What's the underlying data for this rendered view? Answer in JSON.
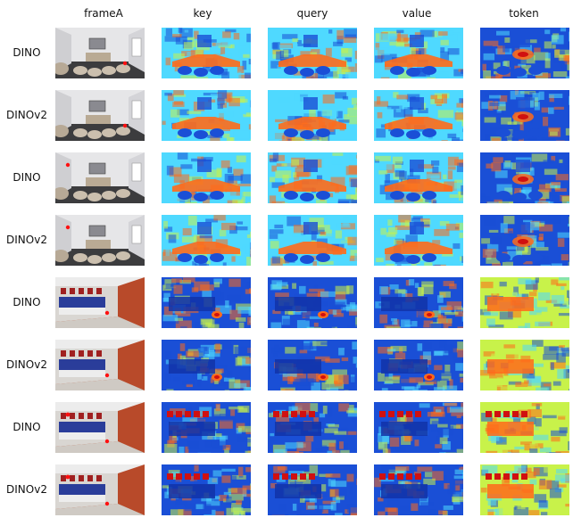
{
  "columns": [
    "frameA",
    "key",
    "query",
    "value",
    "token"
  ],
  "rows": [
    {
      "label": "DINO",
      "scene": "room1"
    },
    {
      "label": "DINOv2",
      "scene": "room1"
    },
    {
      "label": "DINO",
      "scene": "room1"
    },
    {
      "label": "DINOv2",
      "scene": "room1"
    },
    {
      "label": "DINO",
      "scene": "room2"
    },
    {
      "label": "DINOv2",
      "scene": "room2"
    },
    {
      "label": "DINO",
      "scene": "room2"
    },
    {
      "label": "DINOv2",
      "scene": "room2"
    }
  ],
  "colors": {
    "jet_low": "#1a4fd6",
    "jet_mid": "#4fd9ff",
    "jet_midhigh": "#c8f24a",
    "jet_high": "#ff6a1a",
    "jet_peak": "#d01010",
    "room1_wall": "#e6e6e8",
    "room1_floor": "#3c3c3e",
    "room2_wall": "#b84a2a",
    "room2_ceiling": "#ececec"
  }
}
